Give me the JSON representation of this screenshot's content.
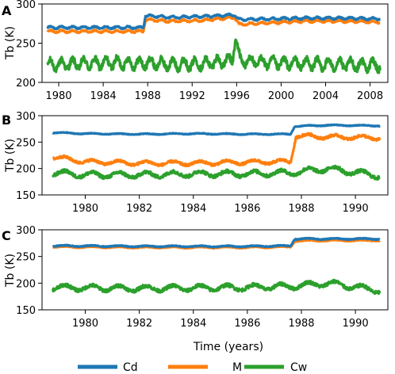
{
  "chart_data": [
    {
      "panel": "A",
      "type": "line",
      "ylabel": "Tb (K)",
      "xlim": [
        1978.5,
        2009.6
      ],
      "ylim": [
        200,
        300
      ],
      "xticks": [
        1980,
        1984,
        1988,
        1992,
        1996,
        2000,
        2004,
        2008
      ],
      "xtick_labels": [
        "1980",
        "1984",
        "1988",
        "1992",
        "1996",
        "2000",
        "2004",
        "2008"
      ],
      "yticks": [
        200,
        250,
        300
      ],
      "ytick_labels": [
        "200",
        "250",
        "300"
      ],
      "series": [
        {
          "name": "Cd",
          "x": [
            1979,
            1982,
            1985,
            1987.6,
            1987.8,
            1990,
            1993,
            1995.8,
            1996.2,
            1999,
            2002,
            2005,
            2008.9
          ],
          "y": [
            270,
            270,
            270,
            270,
            285,
            283,
            284,
            286,
            280,
            281,
            282,
            282,
            281
          ]
        },
        {
          "name": "M",
          "x": [
            1979,
            1982,
            1985,
            1987.6,
            1987.8,
            1990,
            1993,
            1995.8,
            1996.2,
            1999,
            2002,
            2005,
            2008.9
          ],
          "y": [
            265,
            265,
            265,
            265,
            280,
            278,
            279,
            283,
            274,
            276,
            278,
            278,
            277
          ]
        },
        {
          "name": "Cw",
          "x": [
            1979,
            1982,
            1985,
            1987.6,
            1988,
            1990,
            1993,
            1995.6,
            1995.9,
            1996.3,
            1999,
            2002,
            2005,
            2008.9
          ],
          "y": [
            222,
            224,
            225,
            224,
            225,
            223,
            224,
            228,
            258,
            228,
            225,
            224,
            223,
            222
          ]
        }
      ]
    },
    {
      "panel": "B",
      "type": "line",
      "ylabel": "Tb (K)",
      "xlim": [
        1978.4,
        1991.2
      ],
      "ylim": [
        150,
        300
      ],
      "xticks": [
        1980,
        1982,
        1984,
        1986,
        1988,
        1990
      ],
      "xtick_labels": [
        "1980",
        "1982",
        "1984",
        "1986",
        "1988",
        "1990"
      ],
      "yticks": [
        150,
        200,
        250,
        300
      ],
      "ytick_labels": [
        "150",
        "200",
        "250",
        "300"
      ],
      "series": [
        {
          "name": "Cd",
          "x": [
            1978.8,
            1980,
            1982,
            1984,
            1986,
            1987.6,
            1987.75,
            1989,
            1990.9
          ],
          "y": [
            268,
            266,
            265,
            266,
            265,
            265,
            280,
            282,
            281
          ]
        },
        {
          "name": "M",
          "x": [
            1978.8,
            1980,
            1982,
            1984,
            1986,
            1987.6,
            1987.8,
            1989,
            1990.9
          ],
          "y": [
            222,
            213,
            210,
            210,
            212,
            213,
            262,
            260,
            258
          ]
        },
        {
          "name": "Cw",
          "x": [
            1978.8,
            1980,
            1982,
            1984,
            1986,
            1987.6,
            1989,
            1990.9
          ],
          "y": [
            192,
            188,
            188,
            190,
            190,
            192,
            200,
            186
          ]
        }
      ]
    },
    {
      "panel": "C",
      "type": "line",
      "ylabel": "Tb (K)",
      "xlabel": "Time (years)",
      "xlim": [
        1978.4,
        1991.2
      ],
      "ylim": [
        150,
        300
      ],
      "xticks": [
        1980,
        1982,
        1984,
        1986,
        1988,
        1990
      ],
      "xtick_labels": [
        "1980",
        "1982",
        "1984",
        "1986",
        "1988",
        "1990"
      ],
      "yticks": [
        150,
        200,
        250,
        300
      ],
      "ytick_labels": [
        "150",
        "200",
        "250",
        "300"
      ],
      "series": [
        {
          "name": "Cd",
          "x": [
            1978.8,
            1982,
            1986,
            1987.6,
            1987.75,
            1989,
            1990.9
          ],
          "y": [
            270,
            269,
            269,
            270,
            283,
            283,
            283
          ]
        },
        {
          "name": "M",
          "x": [
            1978.8,
            1982,
            1986,
            1987.6,
            1987.75,
            1989,
            1990.9
          ],
          "y": [
            268,
            267,
            267,
            268,
            279,
            280,
            280
          ]
        },
        {
          "name": "Cw",
          "x": [
            1978.8,
            1982,
            1986,
            1987.6,
            1989,
            1990.9
          ],
          "y": [
            192,
            190,
            192,
            194,
            200,
            186
          ]
        }
      ]
    }
  ],
  "legend": {
    "placement": "bottom",
    "items": [
      {
        "label": "Cd",
        "color": "#1f77b4"
      },
      {
        "label": "M",
        "color": "#ff7f0e"
      },
      {
        "label": "Cw",
        "color": "#2ca02c"
      }
    ]
  },
  "colors": {
    "Cd": "#1f77b4",
    "M": "#ff7f0e",
    "Cw": "#2ca02c"
  }
}
